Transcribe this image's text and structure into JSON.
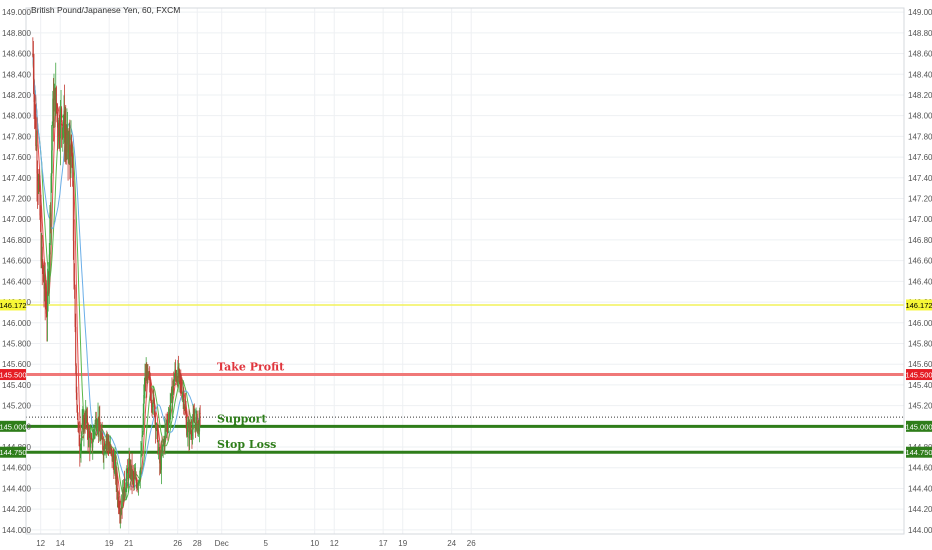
{
  "title": "British Pound/Japanese Yen, 60, FXCM",
  "chart_data": {
    "type": "candlestick",
    "symbol": "British Pound/Japanese Yen, 60, FXCM",
    "ylim": [
      143.96,
      149.04
    ],
    "y_ticks": [
      "144.000",
      "144.200",
      "144.400",
      "144.600",
      "144.800",
      "145.000",
      "145.200",
      "145.400",
      "145.600",
      "145.800",
      "146.000",
      "146.200",
      "146.400",
      "146.600",
      "146.800",
      "147.000",
      "147.200",
      "147.400",
      "147.600",
      "147.800",
      "148.000",
      "148.200",
      "148.400",
      "148.600",
      "148.800",
      "149.000"
    ],
    "x_ticks": [
      {
        "label": "12",
        "day": 12
      },
      {
        "label": "14",
        "day": 14
      },
      {
        "label": "19",
        "day": 19
      },
      {
        "label": "21",
        "day": 21
      },
      {
        "label": "26",
        "day": 26
      },
      {
        "label": "28",
        "day": 28
      },
      {
        "label": "Dec",
        "day": 30.5
      },
      {
        "label": "5",
        "day": 35
      },
      {
        "label": "10",
        "day": 40
      },
      {
        "label": "12",
        "day": 42
      },
      {
        "label": "17",
        "day": 47
      },
      {
        "label": "19",
        "day": 49
      },
      {
        "label": "24",
        "day": 54
      },
      {
        "label": "26",
        "day": 56
      }
    ],
    "price_path": [
      {
        "day": 11.2,
        "price": 148.6
      },
      {
        "day": 11.5,
        "price": 147.8
      },
      {
        "day": 11.8,
        "price": 147.3
      },
      {
        "day": 12.1,
        "price": 146.6
      },
      {
        "day": 12.4,
        "price": 146.3
      },
      {
        "day": 12.7,
        "price": 146.1
      },
      {
        "day": 13.0,
        "price": 147.2
      },
      {
        "day": 13.2,
        "price": 148.0
      },
      {
        "day": 13.5,
        "price": 148.2
      },
      {
        "day": 13.8,
        "price": 147.9
      },
      {
        "day": 14.1,
        "price": 148.0
      },
      {
        "day": 14.4,
        "price": 147.9
      },
      {
        "day": 14.7,
        "price": 147.7
      },
      {
        "day": 15.0,
        "price": 147.6
      },
      {
        "day": 15.2,
        "price": 147.6
      },
      {
        "day": 15.4,
        "price": 146.5
      },
      {
        "day": 15.6,
        "price": 145.5
      },
      {
        "day": 15.8,
        "price": 145.0
      },
      {
        "day": 16.0,
        "price": 144.8
      },
      {
        "day": 16.3,
        "price": 145.0
      },
      {
        "day": 16.6,
        "price": 145.1
      },
      {
        "day": 16.9,
        "price": 144.9
      },
      {
        "day": 17.2,
        "price": 144.8
      },
      {
        "day": 17.5,
        "price": 145.0
      },
      {
        "day": 17.8,
        "price": 145.1
      },
      {
        "day": 18.1,
        "price": 144.9
      },
      {
        "day": 18.4,
        "price": 144.8
      },
      {
        "day": 18.7,
        "price": 144.9
      },
      {
        "day": 19.0,
        "price": 144.8
      },
      {
        "day": 19.3,
        "price": 144.7
      },
      {
        "day": 19.6,
        "price": 144.6
      },
      {
        "day": 19.9,
        "price": 144.3
      },
      {
        "day": 20.2,
        "price": 144.2
      },
      {
        "day": 20.5,
        "price": 144.4
      },
      {
        "day": 20.8,
        "price": 144.5
      },
      {
        "day": 21.1,
        "price": 144.6
      },
      {
        "day": 21.4,
        "price": 144.5
      },
      {
        "day": 21.7,
        "price": 144.45
      },
      {
        "day": 22.0,
        "price": 144.5
      },
      {
        "day": 22.2,
        "price": 144.6
      },
      {
        "day": 22.4,
        "price": 144.9
      },
      {
        "day": 22.6,
        "price": 145.4
      },
      {
        "day": 22.8,
        "price": 145.5
      },
      {
        "day": 23.0,
        "price": 145.45
      },
      {
        "day": 23.3,
        "price": 145.3
      },
      {
        "day": 23.6,
        "price": 145.2
      },
      {
        "day": 23.9,
        "price": 144.9
      },
      {
        "day": 24.2,
        "price": 144.6
      },
      {
        "day": 24.5,
        "price": 144.8
      },
      {
        "day": 24.8,
        "price": 145.0
      },
      {
        "day": 25.1,
        "price": 145.1
      },
      {
        "day": 25.4,
        "price": 145.3
      },
      {
        "day": 25.7,
        "price": 145.5
      },
      {
        "day": 26.0,
        "price": 145.5
      },
      {
        "day": 26.3,
        "price": 145.4
      },
      {
        "day": 26.6,
        "price": 145.3
      },
      {
        "day": 26.9,
        "price": 145.0
      },
      {
        "day": 27.2,
        "price": 144.95
      },
      {
        "day": 27.5,
        "price": 145.0
      },
      {
        "day": 27.8,
        "price": 145.05
      },
      {
        "day": 28.1,
        "price": 145.02
      },
      {
        "day": 28.3,
        "price": 145.05
      }
    ],
    "levels": [
      {
        "name": "Take Profit",
        "price": 145.5,
        "color": "#f07878",
        "tag_bg": "#e51c24",
        "tag_fg": "#ffffff",
        "tag_label": "145.500",
        "dotted": false
      },
      {
        "name": "Support",
        "price": 145.0,
        "color": "#2e7d1a",
        "tag_bg": "#2e7d1a",
        "tag_fg": "#ffffff",
        "tag_label": "145.000",
        "dotted": false
      },
      {
        "name": "Stop Loss",
        "price": 144.75,
        "color": "#2e7d1a",
        "tag_bg": "#2e7d1a",
        "tag_fg": "#ffffff",
        "tag_label": "144.750",
        "dotted": false
      },
      {
        "name": "",
        "price": 146.172,
        "color": "#f2f25a",
        "tag_bg": "#f7f736",
        "tag_fg": "#000000",
        "tag_label": "146.172",
        "dotted": false
      }
    ],
    "current_price": 145.05,
    "annotations": [
      {
        "text": "Take Profit",
        "price": 145.5,
        "day": 29.0,
        "color": "#e0343c"
      },
      {
        "text": "Support",
        "price": 145.0,
        "day": 29.0,
        "color": "#2e7d1a"
      },
      {
        "text": "Stop Loss",
        "price": 144.75,
        "day": 29.0,
        "color": "#2e7d1a"
      }
    ],
    "colors": {
      "up": "#3fa33f",
      "down": "#c23b32",
      "ma_red": "#e84c4c",
      "ma_green": "#59b84a",
      "ma_blue": "#6aaee8",
      "grid": "#eef0f3"
    },
    "grid": true
  }
}
